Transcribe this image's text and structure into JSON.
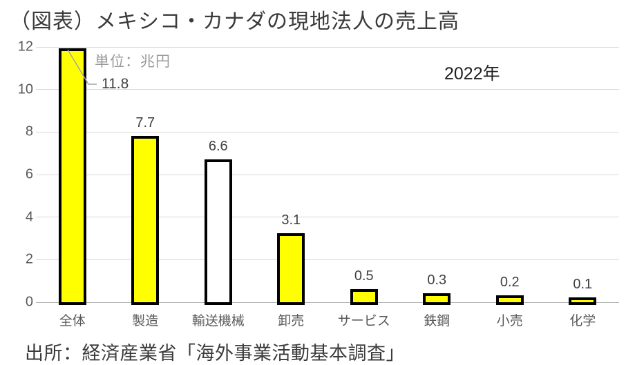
{
  "title": "（図表）メキシコ・カナダの現地法人の売上高",
  "unit_label": "単位：兆円",
  "year_label": "2022年",
  "source": "出所：経済産業省「海外事業活動基本調査」",
  "chart_data": {
    "type": "bar",
    "title": "（図表）メキシコ・カナダの現地法人の売上高",
    "subtitle": "2022年",
    "unit": "兆円",
    "categories": [
      "全体",
      "製造",
      "輸送機械",
      "卸売",
      "サービス",
      "鉄鋼",
      "小売",
      "化学"
    ],
    "values": [
      11.8,
      7.7,
      6.6,
      3.1,
      0.5,
      0.3,
      0.2,
      0.1
    ],
    "data_labels": [
      "11.8",
      "7.7",
      "6.6",
      "3.1",
      "0.5",
      "0.3",
      "0.2",
      "0.1"
    ],
    "bar_colors": [
      "#ffff00",
      "#ffff00",
      "#ffffff",
      "#ffff00",
      "#ffff00",
      "#ffff00",
      "#ffff00",
      "#ffff00"
    ],
    "bar_border_color": "#000000",
    "y_ticks": [
      0,
      2,
      4,
      6,
      8,
      10,
      12
    ],
    "ylim": [
      0,
      12
    ],
    "xlabel": "",
    "ylabel": "",
    "grid": true,
    "gridline_color": "#d6d6d6",
    "legend_position": "none",
    "callout": {
      "index": 0,
      "label": "11.8"
    }
  },
  "colors": {
    "accent_yellow": "#ffff00",
    "bar_border": "#000000",
    "text_dark": "#3b3b3b",
    "text_gray": "#595959",
    "leader_line": "#a6a6a6"
  }
}
